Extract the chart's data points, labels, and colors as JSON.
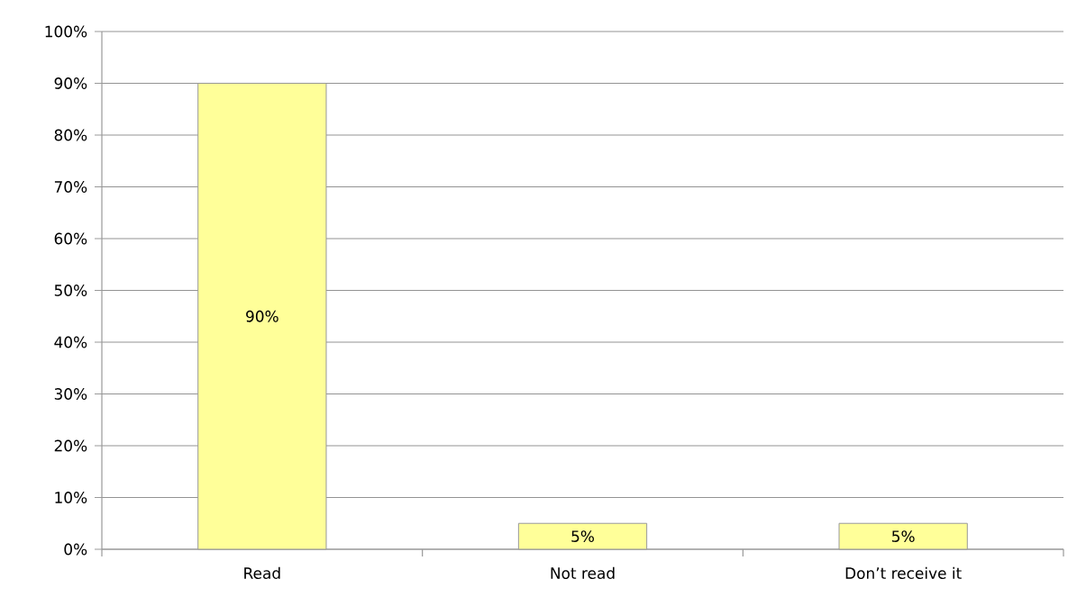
{
  "chart_data": {
    "type": "bar",
    "categories": [
      "Read",
      "Not read",
      "Don’t receive it"
    ],
    "values": [
      90,
      5,
      5
    ],
    "value_labels": [
      "90%",
      "5%",
      "5%"
    ],
    "color": "#ffff99",
    "ylim": [
      0,
      100
    ],
    "yticks": [
      {
        "value": 0,
        "label": "0%"
      },
      {
        "value": 10,
        "label": "10%"
      },
      {
        "value": 20,
        "label": "20%"
      },
      {
        "value": 30,
        "label": "30%"
      },
      {
        "value": 40,
        "label": "40%"
      },
      {
        "value": 50,
        "label": "50%"
      },
      {
        "value": 60,
        "label": "60%"
      },
      {
        "value": 70,
        "label": "70%"
      },
      {
        "value": 80,
        "label": "80%"
      },
      {
        "value": 90,
        "label": "90%"
      },
      {
        "value": 100,
        "label": "100%"
      }
    ],
    "grid": "y"
  }
}
